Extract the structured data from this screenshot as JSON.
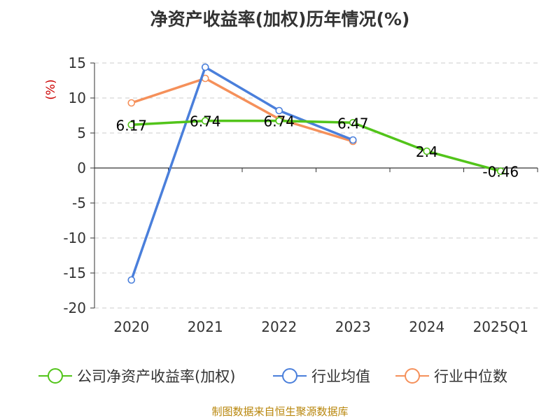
{
  "chart_data": {
    "type": "line",
    "title": "净资产收益率(加权)历年情况(%)",
    "ylabel": "(%)",
    "categories": [
      "2020",
      "2021",
      "2022",
      "2023",
      "2024",
      "2025Q1"
    ],
    "ylim": [
      -20,
      15
    ],
    "yticks": [
      "15",
      "10",
      "5",
      "0",
      "-5",
      "-10",
      "-15",
      "-20"
    ],
    "grid": true,
    "legend_position": "bottom",
    "series": [
      {
        "name": "公司净资产收益率(加权)",
        "color": "#52c41a",
        "values": [
          6.17,
          6.74,
          6.74,
          6.47,
          2.4,
          -0.46
        ],
        "labels": [
          "6.17",
          "6.74",
          "6.74",
          "6.47",
          "2.4",
          "-0.46"
        ]
      },
      {
        "name": "行业均值",
        "color": "#4a7fdb",
        "values": [
          -16.0,
          14.4,
          8.2,
          4.0,
          null,
          null
        ]
      },
      {
        "name": "行业中位数",
        "color": "#f5905a",
        "values": [
          9.3,
          12.8,
          7.0,
          3.8,
          null,
          null
        ]
      }
    ]
  },
  "source": "制图数据来自恒生聚源数据库"
}
